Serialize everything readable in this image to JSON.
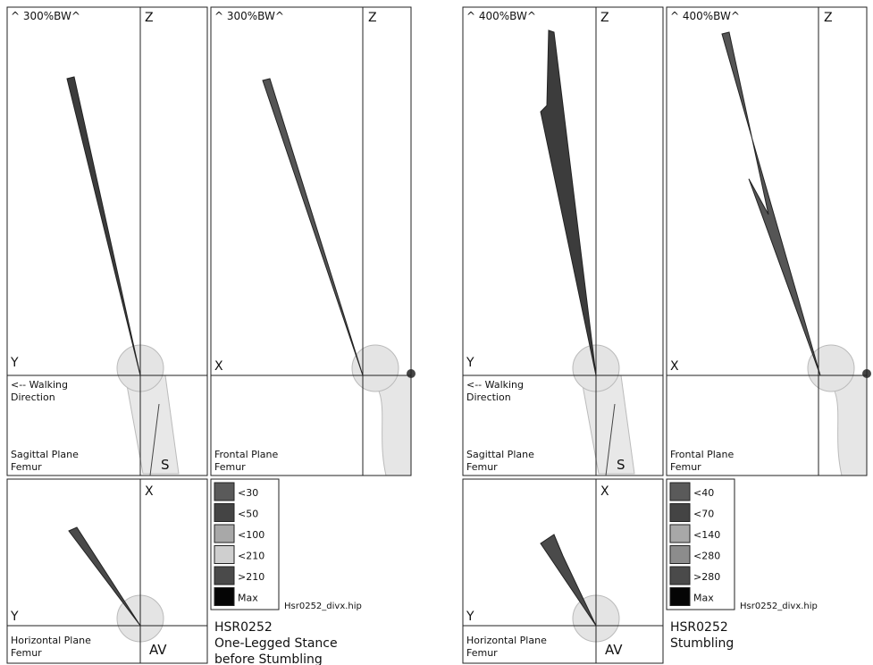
{
  "panels": [
    {
      "sagittal": {
        "scale": "^ 300%BW^",
        "up_axis": "Z",
        "side_axis": "Y",
        "walking_direction": [
          "<-- Walking",
          "Direction"
        ],
        "plane": [
          "Sagittal Plane",
          "Femur"
        ],
        "marker": "S"
      },
      "frontal": {
        "scale": "^ 300%BW^",
        "up_axis": "Z",
        "side_axis": "X",
        "plane": [
          "Frontal Plane",
          "Femur"
        ]
      },
      "horizontal": {
        "up_axis": "X",
        "side_axis": "Y",
        "plane": [
          "Horizontal Plane",
          "Femur"
        ],
        "marker": "AV"
      },
      "legend": [
        {
          "label": "<30",
          "color": "#5a5a5a"
        },
        {
          "label": "<50",
          "color": "#444444"
        },
        {
          "label": "<100",
          "color": "#a8a8a8"
        },
        {
          "label": "<210",
          "color": "#cfcfcf"
        },
        {
          "label": ">210",
          "color": "#4a4a4a"
        },
        {
          "label": "Max",
          "color": "#050505"
        }
      ],
      "file": "Hsr0252_divx.hip",
      "subject": "HSR0252",
      "activity": [
        "One-Legged Stance",
        "before Stumbling"
      ]
    },
    {
      "sagittal": {
        "scale": "^ 400%BW^",
        "up_axis": "Z",
        "side_axis": "Y",
        "walking_direction": [
          "<-- Walking",
          "Direction"
        ],
        "plane": [
          "Sagittal Plane",
          "Femur"
        ],
        "marker": "S"
      },
      "frontal": {
        "scale": "^ 400%BW^",
        "up_axis": "Z",
        "side_axis": "X",
        "plane": [
          "Frontal Plane",
          "Femur"
        ]
      },
      "horizontal": {
        "up_axis": "X",
        "side_axis": "Y",
        "plane": [
          "Horizontal Plane",
          "Femur"
        ],
        "marker": "AV"
      },
      "legend": [
        {
          "label": "<40",
          "color": "#5a5a5a"
        },
        {
          "label": "<70",
          "color": "#444444"
        },
        {
          "label": "<140",
          "color": "#a8a8a8"
        },
        {
          "label": "<280",
          "color": "#8c8c8c"
        },
        {
          "label": ">280",
          "color": "#4a4a4a"
        },
        {
          "label": "Max",
          "color": "#050505"
        }
      ],
      "file": "Hsr0252_divx.hip",
      "subject": "HSR0252",
      "activity": [
        "Stumbling"
      ]
    }
  ]
}
